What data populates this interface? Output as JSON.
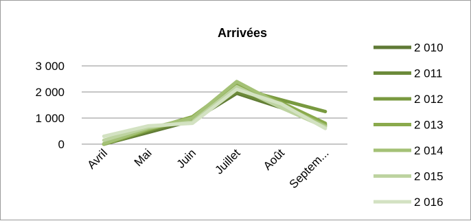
{
  "chart_data": {
    "type": "line",
    "title": "Arrivées",
    "xlabel": "",
    "ylabel": "",
    "categories": [
      "Avril",
      "Mai",
      "Juin",
      "Juillet",
      "Août",
      "Septem..."
    ],
    "yticks": [
      "0",
      "1 000",
      "2 000",
      "3 000"
    ],
    "ylim": [
      0,
      3000
    ],
    "grid": true,
    "legend": "right",
    "series": [
      {
        "name": "2 010",
        "color": "#5f7a35",
        "values": [
          0,
          450,
          900,
          1950,
          1400,
          700
        ]
      },
      {
        "name": "2 011",
        "color": "#6c8a3a",
        "values": [
          0,
          500,
          950,
          2000,
          1450,
          750
        ]
      },
      {
        "name": "2 012",
        "color": "#78993f",
        "values": [
          0,
          550,
          1000,
          2150,
          1700,
          1250
        ]
      },
      {
        "name": "2 013",
        "color": "#8aaa4c",
        "values": [
          0,
          550,
          1050,
          2300,
          1600,
          800
        ]
      },
      {
        "name": "2 014",
        "color": "#a4c176",
        "values": [
          20,
          600,
          1000,
          2400,
          1500,
          700
        ]
      },
      {
        "name": "2 015",
        "color": "#bdd3a0",
        "values": [
          150,
          650,
          850,
          2200,
          1400,
          650
        ]
      },
      {
        "name": "2 016",
        "color": "#d3e2c2",
        "values": [
          300,
          700,
          800,
          2100,
          1550,
          600
        ]
      }
    ]
  }
}
